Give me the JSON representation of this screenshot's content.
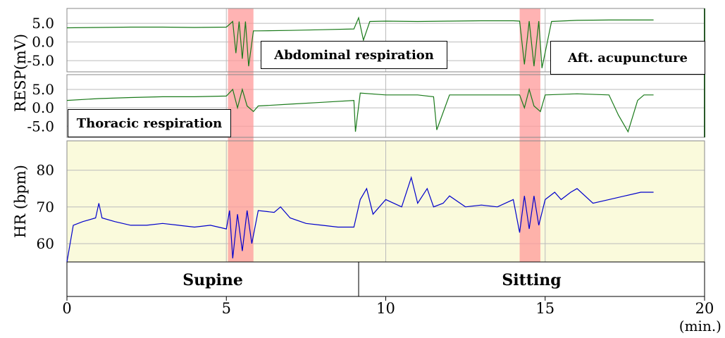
{
  "chart_data": {
    "type": "line",
    "x_unit": "(min.)",
    "x_ticks": [
      "0",
      "5",
      "10",
      "15",
      "20"
    ],
    "xlim": [
      0,
      20
    ],
    "stimulation_intervals_min": [
      [
        5.05,
        5.85
      ],
      [
        14.2,
        14.85
      ]
    ],
    "panels": [
      {
        "id": "abdominal",
        "ylabel": "RESP(mV)",
        "y_ticks": [
          "5.0",
          "0.0",
          "-5.0"
        ],
        "ylim": [
          -8,
          9
        ],
        "series": [
          {
            "name": "Abdominal respiration",
            "color": "#1a7a1a",
            "x": [
              0,
              1,
              2,
              3,
              4,
              5,
              5.2,
              5.3,
              5.4,
              5.5,
              5.6,
              5.7,
              5.85,
              6,
              7,
              8,
              9.0,
              9.15,
              9.3,
              9.5,
              10,
              11,
              12,
              13,
              14,
              14.2,
              14.35,
              14.5,
              14.65,
              14.8,
              14.9,
              15.2,
              16,
              17,
              18,
              18.4
            ],
            "values": [
              3.8,
              3.9,
              4.0,
              4.0,
              3.9,
              4.0,
              5.5,
              -3.0,
              5.5,
              -4.5,
              5.5,
              -6.5,
              3.0,
              3.0,
              3.1,
              3.3,
              3.5,
              6.5,
              0.5,
              5.5,
              5.6,
              5.5,
              5.6,
              5.7,
              5.7,
              5.6,
              -6.0,
              5.6,
              -6.5,
              5.6,
              -7.0,
              5.5,
              5.8,
              5.9,
              5.9,
              5.9
            ]
          }
        ],
        "annotations": [
          "Abdominal respiration",
          "Aft. acupuncture"
        ]
      },
      {
        "id": "thoracic",
        "ylabel": "",
        "y_ticks": [
          "5.0",
          "0.0",
          "-5.0"
        ],
        "ylim": [
          -8,
          9
        ],
        "series": [
          {
            "name": "Thoracic respiration",
            "color": "#1a7a1a",
            "x": [
              0,
              1,
              2,
              3,
              4,
              5,
              5.2,
              5.35,
              5.5,
              5.65,
              5.85,
              6,
              7,
              8,
              9.0,
              9.05,
              9.2,
              10,
              11,
              11.5,
              11.6,
              12,
              13,
              14,
              14.2,
              14.35,
              14.5,
              14.65,
              14.85,
              15,
              16,
              17,
              17.3,
              17.6,
              17.9,
              18.1,
              18.4
            ],
            "values": [
              2.0,
              2.5,
              2.8,
              3.0,
              3.0,
              3.2,
              5.0,
              0.0,
              5.0,
              0.5,
              -1.0,
              0.5,
              1.0,
              1.5,
              2.0,
              -6.5,
              4.0,
              3.5,
              3.5,
              3.0,
              -6.0,
              3.5,
              3.5,
              3.5,
              3.5,
              0.0,
              5.0,
              0.5,
              -1.0,
              3.5,
              3.8,
              3.5,
              -2.0,
              -6.5,
              2.0,
              3.5,
              3.5
            ]
          }
        ],
        "annotations": [
          "Thoracic respiration"
        ]
      },
      {
        "id": "hr",
        "ylabel": "HR (bpm)",
        "y_ticks": [
          "80",
          "70",
          "60"
        ],
        "ylim": [
          55,
          88
        ],
        "series": [
          {
            "name": "HR",
            "color": "#0000cc",
            "x": [
              0,
              0.2,
              0.5,
              0.9,
              1.0,
              1.1,
              1.5,
              2,
              2.5,
              3,
              3.5,
              4,
              4.5,
              5.0,
              5.1,
              5.2,
              5.35,
              5.5,
              5.65,
              5.8,
              6.0,
              6.5,
              6.7,
              7,
              7.5,
              8,
              8.5,
              9.0,
              9.2,
              9.4,
              9.6,
              10,
              10.5,
              10.8,
              11,
              11.3,
              11.5,
              11.8,
              12,
              12.5,
              13,
              13.5,
              14,
              14.2,
              14.35,
              14.5,
              14.65,
              14.8,
              15,
              15.3,
              15.5,
              15.8,
              16,
              16.5,
              17,
              17.5,
              18,
              18.4
            ],
            "values": [
              55,
              65,
              66,
              67,
              71,
              67,
              66,
              65,
              65,
              65.5,
              65,
              64.5,
              65,
              64,
              69,
              56,
              68,
              58,
              69,
              60,
              69,
              68.5,
              70,
              67,
              65.5,
              65,
              64.5,
              64.5,
              72,
              75,
              68,
              72,
              70,
              78,
              71,
              75,
              70,
              71,
              73,
              70,
              70.5,
              70,
              72,
              63,
              73,
              64,
              73,
              65,
              72,
              74,
              72,
              74,
              75,
              71,
              72,
              73,
              74,
              74
            ]
          }
        ],
        "annotations": []
      }
    ],
    "posture_labels": [
      "Supine",
      "Sitting"
    ],
    "posture_change_min": 9.15,
    "colors": {
      "resp": "#1a7a1a",
      "hr": "#0000cc",
      "highlight": "#ff9999",
      "hr_bg": "#fafadc",
      "grid": "#bbbbbb"
    }
  }
}
